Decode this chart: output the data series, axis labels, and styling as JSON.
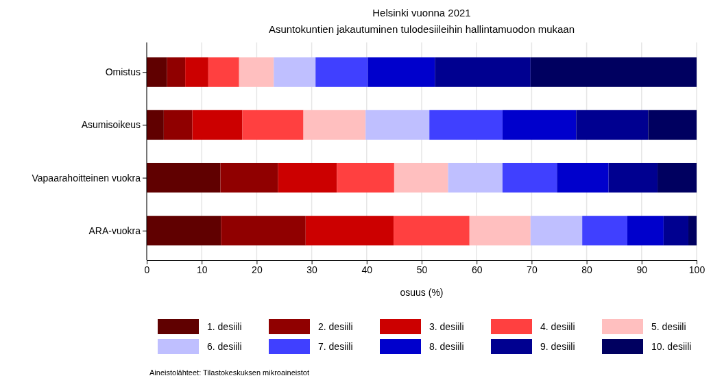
{
  "chart_data": {
    "type": "bar",
    "orientation": "horizontal",
    "stacked": true,
    "title": "Helsinki vuonna 2021",
    "subtitle": "Asuntokuntien jakautuminen tulodesiileihin hallintamuodon mukaan",
    "xlabel": "osuus (%)",
    "categories": [
      "Omistus",
      "Asumisoikeus",
      "Vapaarahoitteinen vuokra",
      "ARA-vuokra"
    ],
    "series": [
      {
        "name": "1. desiili",
        "color": "#600000",
        "values": [
          3.7,
          3.1,
          13.4,
          13.5
        ]
      },
      {
        "name": "2. desiili",
        "color": "#900000",
        "values": [
          3.3,
          5.2,
          10.5,
          15.4
        ]
      },
      {
        "name": "3. desiili",
        "color": "#cc0000",
        "values": [
          4.2,
          9.1,
          10.7,
          16.0
        ]
      },
      {
        "name": "4. desiili",
        "color": "#ff4040",
        "values": [
          5.6,
          11.1,
          10.4,
          13.8
        ]
      },
      {
        "name": "5. desiili",
        "color": "#ffbfbf",
        "values": [
          6.3,
          11.3,
          9.8,
          11.1
        ]
      },
      {
        "name": "6. desiili",
        "color": "#bfbfff",
        "values": [
          7.6,
          11.6,
          9.9,
          9.4
        ]
      },
      {
        "name": "7. desiili",
        "color": "#4040ff",
        "values": [
          9.5,
          13.3,
          9.9,
          8.2
        ]
      },
      {
        "name": "8. desiili",
        "color": "#0000cc",
        "values": [
          12.2,
          13.4,
          9.4,
          6.6
        ]
      },
      {
        "name": "9. desiili",
        "color": "#000090",
        "values": [
          17.4,
          13.1,
          8.9,
          4.5
        ]
      },
      {
        "name": "10. desiili",
        "color": "#000060",
        "values": [
          30.2,
          8.8,
          7.1,
          1.5
        ]
      }
    ],
    "xlim": [
      0,
      100
    ],
    "xticks": [
      0,
      10,
      20,
      30,
      40,
      50,
      60,
      70,
      80,
      90,
      100
    ],
    "grid": "x",
    "legend": "bottom",
    "annotations": [
      "Aineistolähteet: Tilastokeskuksen mikroaineistot"
    ]
  }
}
